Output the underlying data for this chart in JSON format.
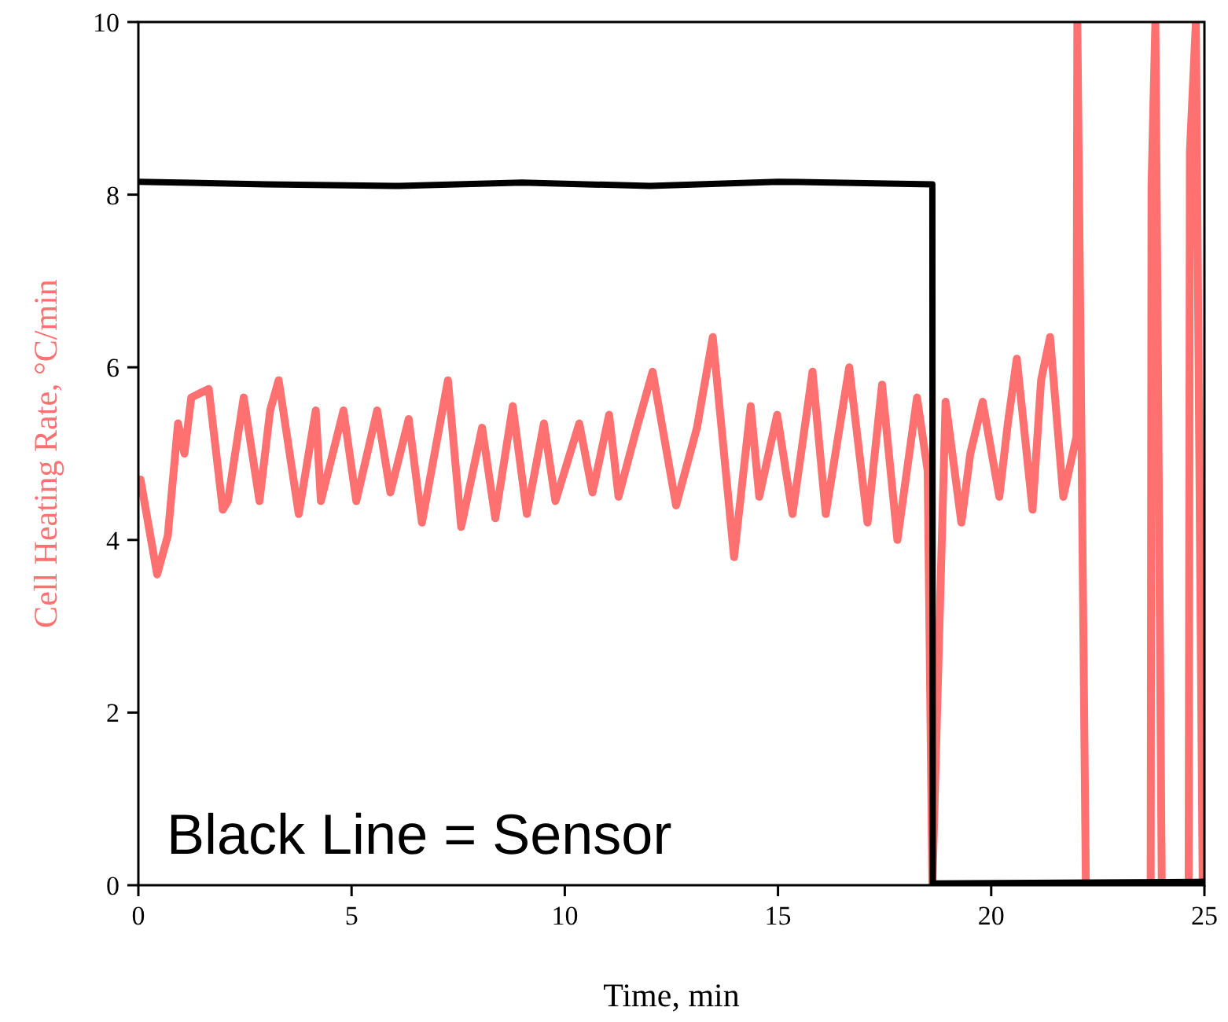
{
  "chart_data": {
    "type": "line",
    "xlabel": "Time, min",
    "ylabel": "Cell Heating Rate, °C/min",
    "xlim": [
      0,
      25
    ],
    "ylim": [
      0,
      10
    ],
    "xticks": [
      0,
      5,
      10,
      15,
      20,
      25
    ],
    "yticks": [
      0,
      2,
      4,
      6,
      8,
      10
    ],
    "grid": false,
    "line_style": "solid",
    "annotations": [
      "Black Line = Sensor"
    ],
    "series": [
      {
        "color": "#ff7070",
        "x": [
          0.05,
          0.44,
          0.69,
          0.93,
          1.08,
          1.24,
          1.65,
          1.98,
          2.1,
          2.47,
          2.84,
          3.09,
          3.29,
          3.76,
          4.16,
          4.28,
          4.81,
          5.11,
          5.6,
          5.91,
          6.34,
          6.65,
          7.26,
          7.57,
          8.06,
          8.37,
          8.78,
          9.11,
          9.51,
          9.78,
          10.34,
          10.65,
          11.04,
          11.26,
          11.69,
          12.06,
          12.61,
          13.1,
          13.47,
          13.97,
          14.36,
          14.56,
          14.98,
          15.34,
          15.81,
          16.12,
          16.67,
          17.1,
          17.44,
          17.8,
          18.26,
          18.51,
          18.62,
          18.93,
          19.3,
          19.51,
          19.8,
          20.19,
          20.39,
          20.6,
          20.97,
          21.17,
          21.38,
          21.69,
          22.0,
          22.02,
          22.22,
          23.74,
          23.76,
          23.85,
          24.0,
          24.63,
          24.66,
          24.8,
          24.96
        ],
        "values": [
          4.7,
          3.6,
          4.05,
          5.35,
          5.0,
          5.65,
          5.75,
          4.35,
          4.45,
          5.65,
          4.45,
          5.5,
          5.85,
          4.3,
          5.5,
          4.45,
          5.5,
          4.45,
          5.5,
          4.55,
          5.4,
          4.2,
          5.85,
          4.15,
          5.3,
          4.25,
          5.55,
          4.3,
          5.35,
          4.45,
          5.35,
          4.55,
          5.45,
          4.5,
          5.3,
          5.95,
          4.4,
          5.3,
          6.35,
          3.8,
          5.55,
          4.5,
          5.45,
          4.3,
          5.95,
          4.3,
          6.0,
          4.2,
          5.8,
          4.0,
          5.65,
          4.8,
          0,
          5.6,
          4.2,
          5.0,
          5.6,
          4.5,
          5.35,
          6.1,
          4.35,
          5.85,
          6.35,
          4.5,
          5.2,
          10,
          0,
          0,
          8.1,
          10,
          0,
          0,
          8.5,
          10,
          0
        ]
      },
      {
        "color": "#000000",
        "x": [
          0,
          3,
          6,
          9,
          12,
          15,
          18.62,
          18.63,
          25
        ],
        "values": [
          8.15,
          8.12,
          8.1,
          8.14,
          8.1,
          8.15,
          8.12,
          0.02,
          0.04
        ]
      }
    ]
  }
}
